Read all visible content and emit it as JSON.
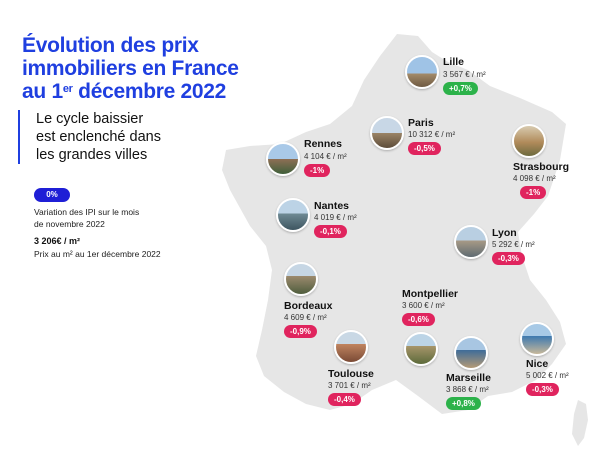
{
  "title": {
    "line1": "Évolution des prix",
    "line2": "immobiliers en France",
    "line3_pre": "au 1",
    "line3_sup": "er",
    "line3_post": " décembre 2022"
  },
  "subtitle": {
    "line1": "Le cycle baissier",
    "line2": "est enclenché dans",
    "line3": "les grandes villes"
  },
  "legend": {
    "badge": "0%",
    "variation_line1": "Variation des IPI sur le mois",
    "variation_line2": "de novembre 2022",
    "price": "3 206€ / m²",
    "price_desc": "Prix au m² au 1er décembre 2022"
  },
  "colors": {
    "title_blue": "#1f3fe0",
    "map_fill": "#e6e6e6",
    "negative": "#e0245e",
    "positive": "#2cb24a"
  },
  "cities": [
    {
      "name": "Lille",
      "price": "3 567 € / m²",
      "change": "+0,7%",
      "trend": "up",
      "photo_icon": "lille-photo-icon"
    },
    {
      "name": "Paris",
      "price": "10 312 € / m²",
      "change": "-0,5%",
      "trend": "down",
      "photo_icon": "paris-photo-icon"
    },
    {
      "name": "Rennes",
      "price": "4 104 € / m²",
      "change": "-1%",
      "trend": "down",
      "photo_icon": "rennes-photo-icon"
    },
    {
      "name": "Strasbourg",
      "price": "4 098 € / m²",
      "change": "-1%",
      "trend": "down",
      "photo_icon": "strasbourg-photo-icon"
    },
    {
      "name": "Nantes",
      "price": "4 019 € / m²",
      "change": "-0,1%",
      "trend": "down",
      "photo_icon": "nantes-photo-icon"
    },
    {
      "name": "Lyon",
      "price": "5 292 € / m²",
      "change": "-0,3%",
      "trend": "down",
      "photo_icon": "lyon-photo-icon"
    },
    {
      "name": "Bordeaux",
      "price": "4 609 € / m²",
      "change": "-0,9%",
      "trend": "down",
      "photo_icon": "bordeaux-photo-icon"
    },
    {
      "name": "Montpellier",
      "price": "3 600 € / m²",
      "change": "-0,6%",
      "trend": "down",
      "photo_icon": "montpellier-photo-icon"
    },
    {
      "name": "Toulouse",
      "price": "3 701 € / m²",
      "change": "-0,4%",
      "trend": "down",
      "photo_icon": "toulouse-photo-icon"
    },
    {
      "name": "Marseille",
      "price": "3 868 € / m²",
      "change": "+0,8%",
      "trend": "up",
      "photo_icon": "marseille-photo-icon"
    },
    {
      "name": "Nice",
      "price": "5 002 € / m²",
      "change": "-0,3%",
      "trend": "down",
      "photo_icon": "nice-photo-icon"
    }
  ]
}
